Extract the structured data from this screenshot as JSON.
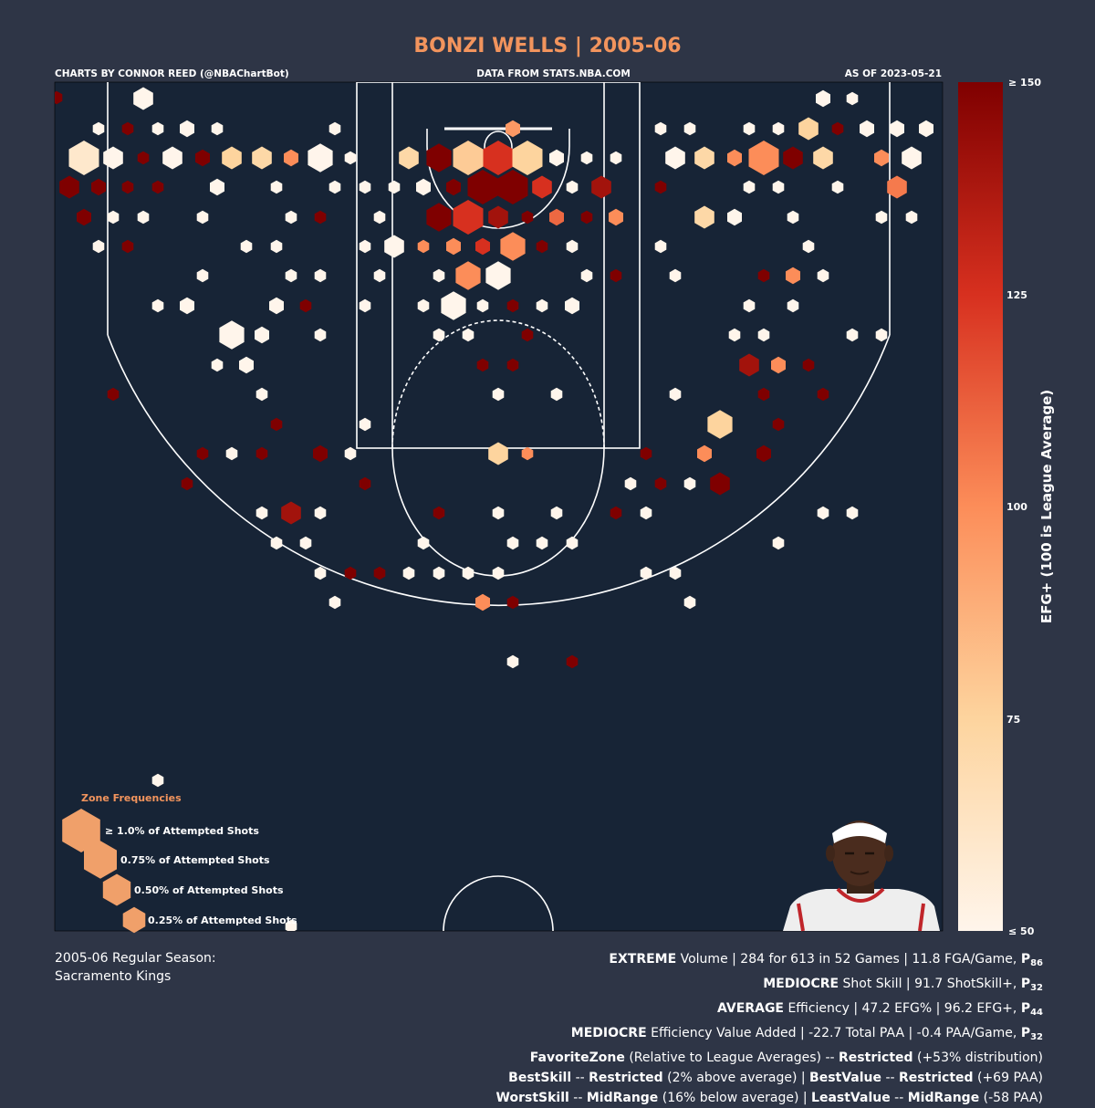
{
  "title": "BONZI WELLS | 2005-06",
  "credits": {
    "left": "CHARTS BY CONNOR REED (@NBAChartBot)",
    "center": "DATA FROM STATS.NBA.COM",
    "right": "AS OF 2023-05-21"
  },
  "colors": {
    "background": "#2e3546",
    "court": "#172436",
    "court_lines": "#ffffff",
    "title": "#f2945d",
    "scale": [
      "#fff5eb",
      "#fdd49e",
      "#fc8d59",
      "#d7301f",
      "#7f0000"
    ]
  },
  "legend": {
    "title": "Zone Frequencies",
    "items": [
      {
        "label": "≥ 1.0% of Attempted Shots",
        "frequency": 1.0
      },
      {
        "label": "0.75% of Attempted Shots",
        "frequency": 0.75
      },
      {
        "label": "0.50% of Attempted Shots",
        "frequency": 0.5
      },
      {
        "label": "0.25% of Attempted Shots",
        "frequency": 0.25
      }
    ]
  },
  "colorbar": {
    "label": "EFG+ (100 is League Average)",
    "min_label": "≤ 50",
    "max_label": "≥ 150",
    "ticks": [
      "75",
      "100",
      "125"
    ]
  },
  "footer_left": [
    "2005-06 Regular Season:",
    "Sacramento Kings"
  ],
  "stats": {
    "volume": {
      "level": "EXTREME",
      "text": "Volume | 284 for 613 in 52 Games | 11.8 FGA/Game,",
      "pct": "86"
    },
    "skill": {
      "level": "MEDIOCRE",
      "text": "Shot Skill | 91.7 ShotSkill+,",
      "pct": "32"
    },
    "efficiency": {
      "level": "AVERAGE",
      "text": "Efficiency | 47.2 EFG% | 96.2 EFG+,",
      "pct": "44"
    },
    "value": {
      "level": "MEDIOCRE",
      "text": "Efficiency Value Added | -22.7 Total PAA | -0.4 PAA/Game,",
      "pct": "32"
    },
    "favorite_zone": {
      "label": "FavoriteZone",
      "mid": "(Relative to League Averages) --",
      "zone": "Restricted",
      "detail": "(+53% distribution)"
    },
    "best": {
      "skill_label": "BestSkill",
      "skill_zone": "Restricted",
      "skill_detail": "(2% above average) |",
      "value_label": "BestValue",
      "value_zone": "Restricted",
      "value_detail": "(+69 PAA)"
    },
    "worst": {
      "skill_label": "WorstSkill",
      "skill_zone": "MidRange",
      "skill_detail": "(16% below average) |",
      "value_label": "LeastValue",
      "value_zone": "MidRange",
      "value_detail": "(-58 PAA)"
    }
  },
  "chart_data": {
    "type": "hexbin shot chart",
    "value_range": [
      50,
      150
    ],
    "columns": [
      "x",
      "y",
      "frequency_pct",
      "efg_plus"
    ],
    "hexes": [
      [
        62,
        107,
        0.1,
        150
      ],
      [
        157,
        108,
        0.5,
        50
      ],
      [
        902,
        108,
        0.25,
        50
      ],
      [
        934,
        108,
        0.1,
        50
      ],
      [
        108,
        141,
        0.1,
        50
      ],
      [
        140,
        141,
        0.1,
        150
      ],
      [
        173,
        141,
        0.1,
        50
      ],
      [
        205,
        141,
        0.25,
        50
      ],
      [
        238,
        141,
        0.1,
        50
      ],
      [
        367,
        141,
        0.1,
        50
      ],
      [
        562,
        141,
        0.25,
        96
      ],
      [
        724,
        141,
        0.1,
        50
      ],
      [
        756,
        141,
        0.1,
        50
      ],
      [
        821,
        141,
        0.1,
        50
      ],
      [
        853,
        141,
        0.1,
        50
      ],
      [
        886,
        141,
        0.5,
        75
      ],
      [
        918,
        141,
        0.1,
        150
      ],
      [
        950,
        141,
        0.25,
        50
      ],
      [
        983,
        141,
        0.25,
        50
      ],
      [
        1015,
        141,
        0.25,
        50
      ],
      [
        92,
        173,
        1.0,
        60
      ],
      [
        124,
        173,
        0.5,
        50
      ],
      [
        157,
        173,
        0.1,
        150
      ],
      [
        189,
        173,
        0.5,
        50
      ],
      [
        222,
        173,
        0.25,
        150
      ],
      [
        254,
        173,
        0.5,
        75
      ],
      [
        287,
        173,
        0.5,
        72
      ],
      [
        319,
        173,
        0.25,
        100
      ],
      [
        351,
        173,
        0.75,
        50
      ],
      [
        384,
        173,
        0.1,
        50
      ],
      [
        448,
        173,
        0.5,
        72
      ],
      [
        481,
        173,
        0.75,
        150
      ],
      [
        513,
        173,
        1.0,
        78
      ],
      [
        546,
        173,
        1.0,
        125
      ],
      [
        578,
        173,
        1.0,
        75
      ],
      [
        610,
        173,
        0.25,
        50
      ],
      [
        643,
        173,
        0.1,
        50
      ],
      [
        675,
        173,
        0.1,
        50
      ],
      [
        740,
        173,
        0.5,
        50
      ],
      [
        772,
        173,
        0.5,
        72
      ],
      [
        805,
        173,
        0.25,
        100
      ],
      [
        837,
        173,
        1.0,
        100
      ],
      [
        869,
        173,
        0.5,
        150
      ],
      [
        902,
        173,
        0.5,
        72
      ],
      [
        966,
        173,
        0.25,
        100
      ],
      [
        999,
        173,
        0.5,
        50
      ],
      [
        76,
        205,
        0.5,
        150
      ],
      [
        108,
        205,
        0.25,
        150
      ],
      [
        140,
        205,
        0.1,
        150
      ],
      [
        173,
        205,
        0.1,
        150
      ],
      [
        238,
        205,
        0.25,
        50
      ],
      [
        303,
        205,
        0.1,
        50
      ],
      [
        367,
        205,
        0.1,
        50
      ],
      [
        400,
        205,
        0.1,
        50
      ],
      [
        432,
        205,
        0.1,
        50
      ],
      [
        464,
        205,
        0.25,
        50
      ],
      [
        497,
        205,
        0.25,
        150
      ],
      [
        529,
        205,
        1.0,
        150
      ],
      [
        562,
        205,
        1.0,
        150
      ],
      [
        594,
        205,
        0.5,
        125
      ],
      [
        627,
        205,
        0.1,
        50
      ],
      [
        659,
        205,
        0.5,
        140
      ],
      [
        724,
        205,
        0.1,
        150
      ],
      [
        821,
        205,
        0.1,
        50
      ],
      [
        853,
        205,
        0.1,
        50
      ],
      [
        918,
        205,
        0.1,
        50
      ],
      [
        983,
        205,
        0.5,
        105
      ],
      [
        92,
        238,
        0.25,
        150
      ],
      [
        124,
        238,
        0.1,
        50
      ],
      [
        157,
        238,
        0.1,
        50
      ],
      [
        222,
        238,
        0.1,
        50
      ],
      [
        319,
        238,
        0.1,
        50
      ],
      [
        351,
        238,
        0.1,
        150
      ],
      [
        416,
        238,
        0.1,
        50
      ],
      [
        481,
        238,
        0.75,
        150
      ],
      [
        513,
        238,
        1.0,
        125
      ],
      [
        546,
        238,
        0.5,
        140
      ],
      [
        578,
        238,
        0.1,
        150
      ],
      [
        610,
        238,
        0.25,
        110
      ],
      [
        643,
        238,
        0.1,
        150
      ],
      [
        675,
        238,
        0.25,
        100
      ],
      [
        772,
        238,
        0.5,
        72
      ],
      [
        805,
        238,
        0.25,
        50
      ],
      [
        869,
        238,
        0.1,
        50
      ],
      [
        966,
        238,
        0.1,
        50
      ],
      [
        999,
        238,
        0.1,
        50
      ],
      [
        108,
        270,
        0.1,
        50
      ],
      [
        140,
        270,
        0.1,
        150
      ],
      [
        270,
        270,
        0.1,
        50
      ],
      [
        303,
        270,
        0.1,
        50
      ],
      [
        400,
        270,
        0.1,
        50
      ],
      [
        432,
        270,
        0.5,
        50
      ],
      [
        464,
        270,
        0.1,
        100
      ],
      [
        497,
        270,
        0.25,
        100
      ],
      [
        529,
        270,
        0.25,
        125
      ],
      [
        562,
        270,
        0.75,
        100
      ],
      [
        594,
        270,
        0.1,
        150
      ],
      [
        627,
        270,
        0.1,
        50
      ],
      [
        724,
        270,
        0.1,
        50
      ],
      [
        886,
        270,
        0.1,
        50
      ],
      [
        222,
        302,
        0.1,
        50
      ],
      [
        319,
        302,
        0.1,
        50
      ],
      [
        351,
        302,
        0.1,
        50
      ],
      [
        416,
        302,
        0.1,
        50
      ],
      [
        481,
        302,
        0.1,
        50
      ],
      [
        513,
        302,
        0.75,
        100
      ],
      [
        546,
        302,
        0.75,
        50
      ],
      [
        643,
        302,
        0.1,
        50
      ],
      [
        675,
        302,
        0.1,
        150
      ],
      [
        740,
        302,
        0.1,
        50
      ],
      [
        837,
        302,
        0.1,
        150
      ],
      [
        869,
        302,
        0.25,
        100
      ],
      [
        902,
        302,
        0.1,
        50
      ],
      [
        173,
        335,
        0.1,
        50
      ],
      [
        205,
        335,
        0.25,
        50
      ],
      [
        303,
        335,
        0.25,
        50
      ],
      [
        335,
        335,
        0.1,
        150
      ],
      [
        400,
        335,
        0.1,
        50
      ],
      [
        464,
        335,
        0.1,
        50
      ],
      [
        497,
        335,
        0.75,
        50
      ],
      [
        529,
        335,
        0.1,
        50
      ],
      [
        562,
        335,
        0.1,
        150
      ],
      [
        594,
        335,
        0.1,
        50
      ],
      [
        627,
        335,
        0.25,
        50
      ],
      [
        821,
        335,
        0.1,
        50
      ],
      [
        869,
        335,
        0.1,
        50
      ],
      [
        254,
        367,
        0.75,
        50
      ],
      [
        287,
        367,
        0.25,
        50
      ],
      [
        351,
        367,
        0.1,
        50
      ],
      [
        481,
        367,
        0.1,
        50
      ],
      [
        513,
        367,
        0.1,
        50
      ],
      [
        578,
        367,
        0.1,
        150
      ],
      [
        805,
        367,
        0.1,
        50
      ],
      [
        837,
        367,
        0.1,
        50
      ],
      [
        934,
        367,
        0.1,
        50
      ],
      [
        966,
        367,
        0.1,
        50
      ],
      [
        238,
        400,
        0.1,
        50
      ],
      [
        270,
        400,
        0.25,
        50
      ],
      [
        529,
        400,
        0.1,
        150
      ],
      [
        562,
        400,
        0.1,
        150
      ],
      [
        821,
        400,
        0.5,
        140
      ],
      [
        853,
        400,
        0.25,
        100
      ],
      [
        886,
        400,
        0.1,
        150
      ],
      [
        124,
        432,
        0.1,
        150
      ],
      [
        287,
        432,
        0.1,
        50
      ],
      [
        546,
        432,
        0.1,
        50
      ],
      [
        610,
        432,
        0.1,
        50
      ],
      [
        740,
        432,
        0.1,
        50
      ],
      [
        837,
        432,
        0.1,
        150
      ],
      [
        902,
        432,
        0.1,
        150
      ],
      [
        303,
        465,
        0.1,
        150
      ],
      [
        400,
        465,
        0.1,
        50
      ],
      [
        789,
        465,
        0.75,
        75
      ],
      [
        853,
        465,
        0.1,
        150
      ],
      [
        222,
        497,
        0.1,
        150
      ],
      [
        254,
        497,
        0.1,
        50
      ],
      [
        287,
        497,
        0.1,
        150
      ],
      [
        351,
        497,
        0.25,
        150
      ],
      [
        384,
        497,
        0.1,
        50
      ],
      [
        546,
        497,
        0.5,
        75
      ],
      [
        578,
        497,
        0.1,
        100
      ],
      [
        708,
        497,
        0.1,
        150
      ],
      [
        772,
        497,
        0.25,
        100
      ],
      [
        837,
        497,
        0.25,
        150
      ],
      [
        205,
        530,
        0.1,
        150
      ],
      [
        400,
        530,
        0.1,
        150
      ],
      [
        691,
        530,
        0.1,
        50
      ],
      [
        724,
        530,
        0.1,
        150
      ],
      [
        756,
        530,
        0.1,
        50
      ],
      [
        789,
        530,
        0.5,
        150
      ],
      [
        287,
        562,
        0.1,
        50
      ],
      [
        319,
        562,
        0.5,
        140
      ],
      [
        351,
        562,
        0.1,
        50
      ],
      [
        481,
        562,
        0.1,
        150
      ],
      [
        546,
        562,
        0.1,
        50
      ],
      [
        610,
        562,
        0.1,
        50
      ],
      [
        675,
        562,
        0.1,
        150
      ],
      [
        708,
        562,
        0.1,
        50
      ],
      [
        902,
        562,
        0.1,
        50
      ],
      [
        934,
        562,
        0.1,
        50
      ],
      [
        303,
        595,
        0.1,
        50
      ],
      [
        335,
        595,
        0.1,
        50
      ],
      [
        464,
        595,
        0.1,
        50
      ],
      [
        562,
        595,
        0.1,
        50
      ],
      [
        594,
        595,
        0.1,
        50
      ],
      [
        627,
        595,
        0.1,
        50
      ],
      [
        853,
        595,
        0.1,
        50
      ],
      [
        351,
        628,
        0.1,
        50
      ],
      [
        384,
        628,
        0.1,
        150
      ],
      [
        416,
        628,
        0.1,
        150
      ],
      [
        448,
        628,
        0.1,
        50
      ],
      [
        481,
        628,
        0.1,
        50
      ],
      [
        513,
        628,
        0.1,
        50
      ],
      [
        546,
        628,
        0.1,
        50
      ],
      [
        708,
        628,
        0.1,
        50
      ],
      [
        740,
        628,
        0.1,
        50
      ],
      [
        367,
        660,
        0.1,
        50
      ],
      [
        529,
        660,
        0.25,
        100
      ],
      [
        562,
        660,
        0.1,
        150
      ],
      [
        756,
        660,
        0.1,
        50
      ],
      [
        562,
        725,
        0.1,
        50
      ],
      [
        627,
        725,
        0.1,
        150
      ],
      [
        173,
        855,
        0.1,
        50
      ],
      [
        319,
        1015,
        0.1,
        50
      ]
    ]
  }
}
